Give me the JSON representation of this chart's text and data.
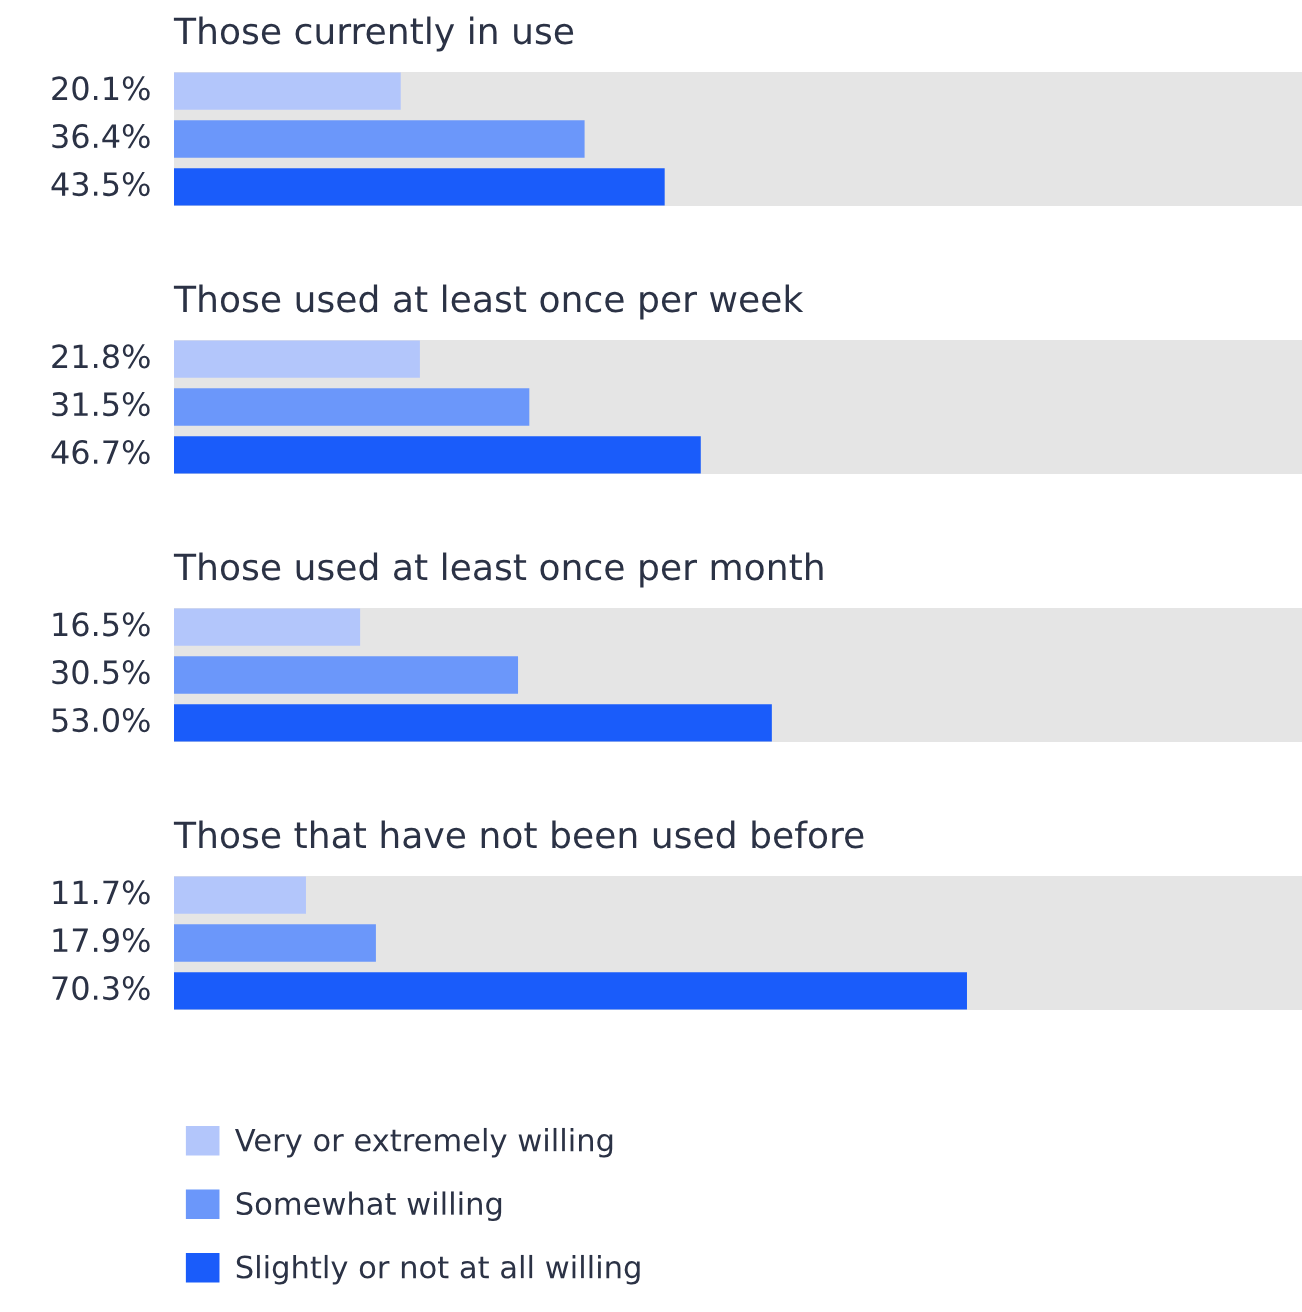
{
  "chart_data": [
    {
      "type": "bar",
      "orientation": "horizontal",
      "title": "Those currently in use",
      "categories": [
        null
      ],
      "xlim": [
        0,
        100
      ],
      "tick_labels": false,
      "series": [
        {
          "color": "#b3c6fb",
          "values": [
            20.1
          ],
          "value_labels": [
            "20.1%"
          ]
        },
        {
          "color": "#6b97fa",
          "values": [
            36.4
          ],
          "value_labels": [
            "36.4%"
          ]
        },
        {
          "color": "#1a5cfa",
          "values": [
            43.5
          ],
          "value_labels": [
            "43.5%"
          ]
        }
      ]
    },
    {
      "type": "bar",
      "orientation": "horizontal",
      "title": "Those used at least once per week",
      "categories": [
        null
      ],
      "xlim": [
        0,
        100
      ],
      "tick_labels": false,
      "series": [
        {
          "color": "#b3c6fb",
          "values": [
            21.8
          ],
          "value_labels": [
            "21.8%"
          ]
        },
        {
          "color": "#6b97fa",
          "values": [
            31.5
          ],
          "value_labels": [
            "31.5%"
          ]
        },
        {
          "color": "#1a5cfa",
          "values": [
            46.7
          ],
          "value_labels": [
            "46.7%"
          ]
        }
      ]
    },
    {
      "type": "bar",
      "orientation": "horizontal",
      "title": "Those used at least once per month",
      "categories": [
        null
      ],
      "xlim": [
        0,
        100
      ],
      "tick_labels": false,
      "series": [
        {
          "color": "#b3c6fb",
          "values": [
            16.5
          ],
          "value_labels": [
            "16.5%"
          ]
        },
        {
          "color": "#6b97fa",
          "values": [
            30.5
          ],
          "value_labels": [
            "30.5%"
          ]
        },
        {
          "color": "#1a5cfa",
          "values": [
            53.0
          ],
          "value_labels": [
            "53.0%"
          ]
        }
      ]
    },
    {
      "type": "bar",
      "orientation": "horizontal",
      "title": "Those that have not been used before",
      "categories": [
        null
      ],
      "xlim": [
        0,
        100
      ],
      "tick_labels": false,
      "legend": "bottom",
      "series": [
        {
          "name": "Very or extremely willing",
          "color": "#b3c6fb",
          "values": [
            11.7
          ],
          "value_labels": [
            "11.7%"
          ]
        },
        {
          "name": "Somewhat willing",
          "color": "#6b97fa",
          "values": [
            17.9
          ],
          "value_labels": [
            "17.9%"
          ]
        },
        {
          "name": "Slightly or not at all willing",
          "color": "#1a5cfa",
          "values": [
            70.3
          ],
          "value_labels": [
            "70.3%"
          ]
        }
      ]
    }
  ]
}
